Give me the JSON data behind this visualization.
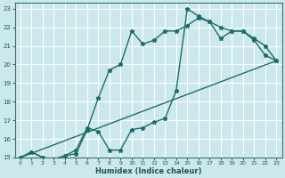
{
  "xlabel": "Humidex (Indice chaleur)",
  "bg_color": "#cce8ed",
  "grid_color": "#ffffff",
  "line_color": "#1a6e6a",
  "xlim": [
    -0.5,
    23.5
  ],
  "ylim": [
    15,
    23.3
  ],
  "xticks": [
    0,
    1,
    2,
    3,
    4,
    5,
    6,
    7,
    8,
    9,
    10,
    11,
    12,
    13,
    14,
    15,
    16,
    17,
    18,
    19,
    20,
    21,
    22,
    23
  ],
  "yticks": [
    15,
    16,
    17,
    18,
    19,
    20,
    21,
    22,
    23
  ],
  "curve1_x": [
    0,
    1,
    2,
    3,
    4,
    5,
    6,
    7,
    8,
    9,
    10,
    11,
    12,
    13,
    14,
    15,
    16,
    17,
    18,
    19,
    20,
    21,
    22,
    23
  ],
  "curve1_y": [
    15.0,
    15.3,
    15.0,
    14.9,
    15.1,
    15.2,
    16.5,
    18.2,
    19.7,
    20.0,
    21.8,
    21.1,
    21.3,
    21.8,
    21.8,
    22.1,
    22.5,
    22.3,
    22.0,
    21.8,
    21.8,
    21.4,
    21.0,
    20.2
  ],
  "curve2_x": [
    0,
    1,
    2,
    3,
    4,
    5,
    6,
    7,
    8,
    9,
    10,
    11,
    12,
    13,
    14,
    15,
    16,
    17,
    18,
    19,
    20,
    21,
    22,
    23
  ],
  "curve2_y": [
    15.0,
    15.3,
    15.0,
    14.9,
    15.1,
    15.4,
    16.6,
    16.4,
    15.4,
    15.4,
    16.5,
    16.6,
    16.9,
    17.1,
    18.6,
    23.0,
    22.6,
    22.3,
    21.4,
    21.8,
    21.8,
    21.3,
    20.5,
    20.2
  ],
  "curve3_x": [
    0,
    23
  ],
  "curve3_y": [
    15.0,
    20.2
  ]
}
